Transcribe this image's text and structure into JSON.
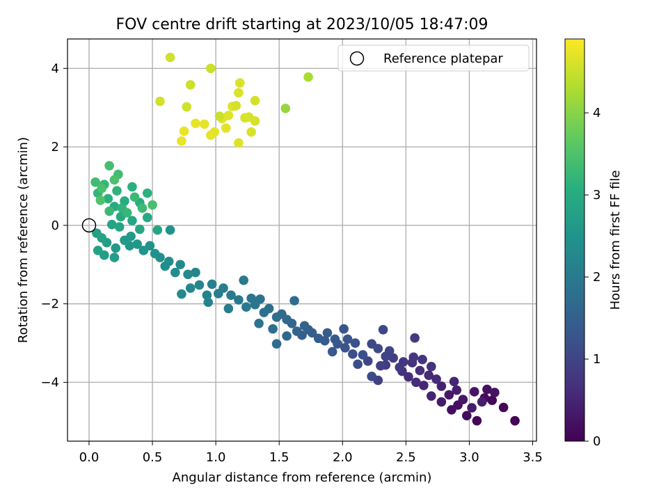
{
  "chart_data": {
    "type": "scatter",
    "title": "FOV centre drift starting at 2023/10/05 18:47:09",
    "xlabel": "Angular distance from reference (arcmin)",
    "ylabel": "Rotation from reference (arcmin)",
    "colorbar_label": "Hours from first FF file",
    "xlim": [
      -0.17,
      3.53
    ],
    "ylim": [
      -5.5,
      4.75
    ],
    "clim": [
      0,
      4.9
    ],
    "colormap": "viridis",
    "x_ticks": [
      0.0,
      0.5,
      1.0,
      1.5,
      2.0,
      2.5,
      3.0,
      3.5
    ],
    "x_tick_labels": [
      "0.0",
      "0.5",
      "1.0",
      "1.5",
      "2.0",
      "2.5",
      "3.0",
      "3.5"
    ],
    "y_ticks": [
      -4,
      -2,
      0,
      2,
      4
    ],
    "y_tick_labels": [
      "−4",
      "−2",
      "0",
      "2",
      "4"
    ],
    "colorbar_ticks": [
      0,
      1,
      2,
      3,
      4
    ],
    "colorbar_tick_labels": [
      "0",
      "1",
      "2",
      "3",
      "4"
    ],
    "grid": true,
    "legend_position": "top-right",
    "reference": {
      "label": "Reference platepar",
      "x": 0.0,
      "y": 0.0
    },
    "series": [
      {
        "points": [
          [
            3.36,
            -4.98,
            0.02
          ],
          [
            3.06,
            -4.98,
            0.05
          ],
          [
            3.27,
            -4.64,
            0.08
          ],
          [
            3.18,
            -4.46,
            0.1
          ],
          [
            3.12,
            -4.4,
            0.12
          ],
          [
            2.98,
            -4.85,
            0.15
          ],
          [
            2.91,
            -4.58,
            0.18
          ],
          [
            2.86,
            -4.7,
            0.2
          ],
          [
            3.14,
            -4.18,
            0.22
          ],
          [
            3.2,
            -4.26,
            0.25
          ],
          [
            3.04,
            -4.24,
            0.28
          ],
          [
            2.95,
            -4.44,
            0.3
          ],
          [
            2.84,
            -4.32,
            0.32
          ],
          [
            2.78,
            -4.5,
            0.35
          ],
          [
            3.02,
            -4.65,
            0.38
          ],
          [
            3.1,
            -4.5,
            0.4
          ],
          [
            2.9,
            -4.2,
            0.42
          ],
          [
            2.78,
            -4.1,
            0.45
          ],
          [
            2.7,
            -4.35,
            0.48
          ],
          [
            2.88,
            -3.98,
            0.5
          ],
          [
            2.64,
            -4.08,
            0.52
          ],
          [
            2.68,
            -3.82,
            0.55
          ],
          [
            2.74,
            -3.92,
            0.58
          ],
          [
            2.58,
            -4.0,
            0.6
          ],
          [
            2.52,
            -3.86,
            0.62
          ],
          [
            2.61,
            -3.7,
            0.65
          ],
          [
            2.47,
            -3.72,
            0.68
          ],
          [
            2.7,
            -3.6,
            0.7
          ],
          [
            2.55,
            -3.5,
            0.72
          ],
          [
            2.63,
            -3.42,
            0.75
          ],
          [
            2.56,
            -3.36,
            0.78
          ],
          [
            2.48,
            -3.48,
            0.8
          ],
          [
            2.45,
            -3.62,
            0.82
          ],
          [
            2.57,
            -2.87,
            0.85
          ],
          [
            2.34,
            -3.56,
            0.88
          ],
          [
            2.4,
            -3.38,
            0.9
          ],
          [
            2.3,
            -3.58,
            0.92
          ],
          [
            2.28,
            -3.95,
            0.95
          ],
          [
            2.34,
            -3.34,
            0.98
          ],
          [
            2.37,
            -3.2,
            1.0
          ],
          [
            2.2,
            -3.46,
            1.02
          ],
          [
            2.32,
            -2.66,
            1.05
          ],
          [
            2.23,
            -3.02,
            1.08
          ],
          [
            2.23,
            -3.85,
            1.1
          ],
          [
            2.28,
            -3.14,
            1.12
          ],
          [
            2.12,
            -3.54,
            1.15
          ],
          [
            2.16,
            -3.3,
            1.18
          ],
          [
            2.08,
            -3.28,
            1.2
          ],
          [
            2.1,
            -3.0,
            1.22
          ],
          [
            2.02,
            -3.12,
            1.25
          ],
          [
            2.04,
            -2.9,
            1.28
          ],
          [
            2.01,
            -2.64,
            1.3
          ],
          [
            1.96,
            -3.02,
            1.32
          ],
          [
            1.92,
            -3.22,
            1.35
          ],
          [
            1.94,
            -2.9,
            1.38
          ],
          [
            1.86,
            -2.94,
            1.4
          ],
          [
            1.88,
            -2.74,
            1.42
          ],
          [
            1.81,
            -2.88,
            1.45
          ],
          [
            1.76,
            -2.74,
            1.48
          ],
          [
            1.73,
            -2.66,
            1.5
          ],
          [
            1.68,
            -2.8,
            1.52
          ],
          [
            1.7,
            -2.56,
            1.55
          ],
          [
            1.64,
            -2.7,
            1.58
          ],
          [
            1.6,
            -2.5,
            1.6
          ],
          [
            1.56,
            -2.82,
            1.62
          ],
          [
            1.56,
            -2.4,
            1.65
          ],
          [
            1.52,
            -2.26,
            1.68
          ],
          [
            1.48,
            -3.02,
            1.7
          ],
          [
            1.62,
            -1.92,
            1.72
          ],
          [
            1.48,
            -2.34,
            1.75
          ],
          [
            1.45,
            -2.64,
            1.78
          ],
          [
            1.42,
            -2.12,
            1.8
          ],
          [
            1.38,
            -2.22,
            1.82
          ],
          [
            1.35,
            -1.88,
            1.85
          ],
          [
            1.34,
            -2.5,
            1.88
          ],
          [
            1.31,
            -2.02,
            1.9
          ],
          [
            1.28,
            -1.86,
            1.92
          ],
          [
            1.24,
            -2.08,
            1.95
          ],
          [
            1.18,
            -1.9,
            1.98
          ],
          [
            1.22,
            -1.4,
            2.0
          ],
          [
            1.12,
            -1.78,
            2.02
          ],
          [
            1.1,
            -2.12,
            2.05
          ],
          [
            1.06,
            -1.6,
            2.08
          ],
          [
            1.02,
            -1.74,
            2.1
          ],
          [
            0.97,
            -1.5,
            2.12
          ],
          [
            0.93,
            -1.78,
            2.15
          ],
          [
            0.94,
            -1.96,
            2.18
          ],
          [
            0.87,
            -1.52,
            2.2
          ],
          [
            0.84,
            -1.2,
            2.22
          ],
          [
            0.8,
            -1.6,
            2.25
          ],
          [
            0.78,
            -1.25,
            2.28
          ],
          [
            0.73,
            -1.75,
            2.3
          ],
          [
            0.72,
            -1.0,
            2.32
          ],
          [
            0.68,
            -1.2,
            2.35
          ],
          [
            0.63,
            -0.92,
            2.38
          ],
          [
            0.6,
            -1.04,
            2.4
          ],
          [
            0.56,
            -0.82,
            2.42
          ],
          [
            0.52,
            -0.72,
            2.45
          ],
          [
            0.48,
            -0.52,
            2.48
          ],
          [
            0.64,
            -0.12,
            2.5
          ],
          [
            0.43,
            -0.64,
            2.52
          ],
          [
            0.38,
            -0.48,
            2.55
          ],
          [
            0.32,
            -0.52,
            2.58
          ],
          [
            0.33,
            -0.28,
            2.6
          ],
          [
            0.28,
            -0.38,
            2.62
          ],
          [
            0.21,
            -0.58,
            2.65
          ],
          [
            0.2,
            -0.82,
            2.68
          ],
          [
            0.14,
            -0.44,
            2.7
          ],
          [
            0.12,
            -0.76,
            2.72
          ],
          [
            0.06,
            -0.2,
            2.75
          ],
          [
            0.07,
            -0.64,
            2.78
          ],
          [
            0.1,
            -0.32,
            2.8
          ],
          [
            0.18,
            0.02,
            2.82
          ],
          [
            0.24,
            -0.04,
            2.85
          ],
          [
            0.54,
            -0.12,
            2.88
          ],
          [
            0.4,
            -0.1,
            2.9
          ],
          [
            0.34,
            0.12,
            2.92
          ],
          [
            0.46,
            0.2,
            2.95
          ],
          [
            0.25,
            0.22,
            2.98
          ],
          [
            0.2,
            0.48,
            3.0
          ],
          [
            0.4,
            0.58,
            3.02
          ],
          [
            0.28,
            0.62,
            3.05
          ],
          [
            0.34,
            0.98,
            3.08
          ],
          [
            0.15,
            0.68,
            3.1
          ],
          [
            0.46,
            0.82,
            3.12
          ],
          [
            0.22,
            0.88,
            3.15
          ],
          [
            0.26,
            0.44,
            3.18
          ],
          [
            0.07,
            0.82,
            3.2
          ],
          [
            0.12,
            1.04,
            3.22
          ],
          [
            0.3,
            0.32,
            3.25
          ],
          [
            0.36,
            0.72,
            3.28
          ],
          [
            0.16,
            0.36,
            3.3
          ],
          [
            0.42,
            0.44,
            3.32
          ],
          [
            0.05,
            1.1,
            3.35
          ],
          [
            0.23,
            1.3,
            3.38
          ],
          [
            0.16,
            1.52,
            3.4
          ],
          [
            0.5,
            0.52,
            3.42
          ],
          [
            0.1,
            0.94,
            3.45
          ],
          [
            0.2,
            1.16,
            3.48
          ],
          [
            0.09,
            0.64,
            3.5
          ],
          [
            0.75,
            2.4,
            4.75
          ],
          [
            0.73,
            2.15,
            4.74
          ],
          [
            0.84,
            2.6,
            4.73
          ],
          [
            0.91,
            2.58,
            4.72
          ],
          [
            0.96,
            2.3,
            4.71
          ],
          [
            0.99,
            2.38,
            4.7
          ],
          [
            1.08,
            2.48,
            4.69
          ],
          [
            1.05,
            2.72,
            4.68
          ],
          [
            1.1,
            2.8,
            4.67
          ],
          [
            1.13,
            3.03,
            4.66
          ],
          [
            1.18,
            2.1,
            4.65
          ],
          [
            1.18,
            3.38,
            4.64
          ],
          [
            1.19,
            3.63,
            4.63
          ],
          [
            1.23,
            2.74,
            4.62
          ],
          [
            1.26,
            2.76,
            4.61
          ],
          [
            1.28,
            2.38,
            4.6
          ],
          [
            1.31,
            2.66,
            4.59
          ],
          [
            1.31,
            3.18,
            4.58
          ],
          [
            1.16,
            3.05,
            4.57
          ],
          [
            0.56,
            3.16,
            4.56
          ],
          [
            0.64,
            4.28,
            4.55
          ],
          [
            0.77,
            3.02,
            4.54
          ],
          [
            0.8,
            3.58,
            4.53
          ],
          [
            0.96,
            4.0,
            4.52
          ],
          [
            1.03,
            2.78,
            4.51
          ],
          [
            1.55,
            2.98,
            4.1
          ],
          [
            1.73,
            3.78,
            4.25
          ]
        ]
      }
    ]
  }
}
